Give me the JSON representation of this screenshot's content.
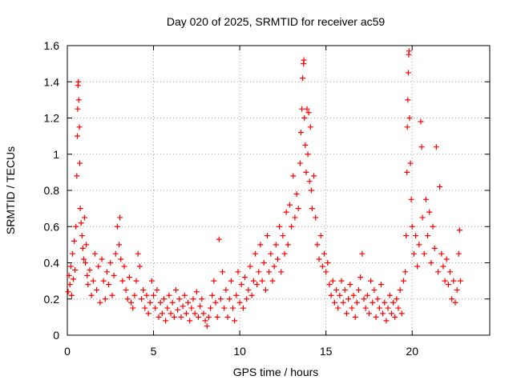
{
  "chart_data": {
    "type": "scatter",
    "title": "Day 020 of 2025, SRMTID for receiver ac59",
    "xlabel": "GPS time / hours",
    "ylabel": "SRMTID / TECUs",
    "xlim": [
      0,
      24.5
    ],
    "ylim": [
      0,
      1.6
    ],
    "xticks": [
      0,
      5,
      10,
      15,
      20
    ],
    "xtick_labels": [
      "0",
      "5",
      "10",
      "15",
      "20"
    ],
    "yticks": [
      0,
      0.2,
      0.4,
      0.6,
      0.8,
      1.0,
      1.2,
      1.4,
      1.6
    ],
    "ytick_labels": [
      "0",
      "0.2",
      "0.4",
      "0.6",
      "0.8",
      "1",
      "1.2",
      "1.4",
      "1.6"
    ],
    "grid": true,
    "marker": "+",
    "color": "#ff0000",
    "series": [
      {
        "name": "SRMTID",
        "points": [
          [
            0.05,
            0.24
          ],
          [
            0.1,
            0.33
          ],
          [
            0.15,
            0.28
          ],
          [
            0.2,
            0.38
          ],
          [
            0.25,
            0.22
          ],
          [
            0.3,
            0.45
          ],
          [
            0.35,
            0.31
          ],
          [
            0.4,
            0.52
          ],
          [
            0.45,
            0.36
          ],
          [
            0.5,
            0.6
          ],
          [
            0.55,
            0.88
          ],
          [
            0.58,
            1.1
          ],
          [
            0.6,
            1.25
          ],
          [
            0.62,
            1.38
          ],
          [
            0.64,
            1.4
          ],
          [
            0.66,
            1.3
          ],
          [
            0.7,
            1.15
          ],
          [
            0.72,
            0.95
          ],
          [
            0.75,
            0.7
          ],
          [
            0.8,
            0.62
          ],
          [
            0.85,
            0.55
          ],
          [
            0.9,
            0.48
          ],
          [
            0.95,
            0.42
          ],
          [
            1.0,
            0.65
          ],
          [
            1.05,
            0.4
          ],
          [
            1.1,
            0.5
          ],
          [
            1.15,
            0.33
          ],
          [
            1.2,
            0.28
          ],
          [
            1.3,
            0.36
          ],
          [
            1.4,
            0.22
          ],
          [
            1.5,
            0.3
          ],
          [
            1.6,
            0.45
          ],
          [
            1.7,
            0.25
          ],
          [
            1.8,
            0.38
          ],
          [
            1.9,
            0.18
          ],
          [
            2.0,
            0.42
          ],
          [
            2.1,
            0.3
          ],
          [
            2.2,
            0.2
          ],
          [
            2.3,
            0.35
          ],
          [
            2.4,
            0.28
          ],
          [
            2.5,
            0.4
          ],
          [
            2.6,
            0.22
          ],
          [
            2.7,
            0.33
          ],
          [
            2.8,
            0.45
          ],
          [
            2.9,
            0.6
          ],
          [
            3.0,
            0.5
          ],
          [
            3.05,
            0.65
          ],
          [
            3.1,
            0.42
          ],
          [
            3.2,
            0.3
          ],
          [
            3.3,
            0.38
          ],
          [
            3.4,
            0.25
          ],
          [
            3.5,
            0.2
          ],
          [
            3.6,
            0.32
          ],
          [
            3.7,
            0.18
          ],
          [
            3.8,
            0.15
          ],
          [
            3.9,
            0.22
          ],
          [
            4.0,
            0.3
          ],
          [
            4.1,
            0.45
          ],
          [
            4.2,
            0.38
          ],
          [
            4.3,
            0.2
          ],
          [
            4.4,
            0.25
          ],
          [
            4.5,
            0.15
          ],
          [
            4.6,
            0.22
          ],
          [
            4.7,
            0.12
          ],
          [
            4.8,
            0.18
          ],
          [
            4.9,
            0.3
          ],
          [
            5.0,
            0.22
          ],
          [
            5.1,
            0.15
          ],
          [
            5.2,
            0.25
          ],
          [
            5.3,
            0.1
          ],
          [
            5.4,
            0.18
          ],
          [
            5.5,
            0.12
          ],
          [
            5.6,
            0.2
          ],
          [
            5.7,
            0.08
          ],
          [
            5.8,
            0.15
          ],
          [
            5.9,
            0.22
          ],
          [
            6.0,
            0.12
          ],
          [
            6.1,
            0.18
          ],
          [
            6.2,
            0.1
          ],
          [
            6.3,
            0.25
          ],
          [
            6.4,
            0.14
          ],
          [
            6.5,
            0.2
          ],
          [
            6.6,
            0.1
          ],
          [
            6.7,
            0.16
          ],
          [
            6.8,
            0.22
          ],
          [
            6.9,
            0.12
          ],
          [
            7.0,
            0.18
          ],
          [
            7.1,
            0.08
          ],
          [
            7.2,
            0.15
          ],
          [
            7.3,
            0.2
          ],
          [
            7.4,
            0.12
          ],
          [
            7.5,
            0.24
          ],
          [
            7.6,
            0.1
          ],
          [
            7.7,
            0.16
          ],
          [
            7.8,
            0.2
          ],
          [
            7.9,
            0.12
          ],
          [
            8.0,
            0.08
          ],
          [
            8.1,
            0.05
          ],
          [
            8.2,
            0.1
          ],
          [
            8.3,
            0.15
          ],
          [
            8.4,
            0.22
          ],
          [
            8.5,
            0.3
          ],
          [
            8.6,
            0.18
          ],
          [
            8.7,
            0.1
          ],
          [
            8.8,
            0.53
          ],
          [
            8.9,
            0.2
          ],
          [
            9.0,
            0.35
          ],
          [
            9.1,
            0.15
          ],
          [
            9.2,
            0.25
          ],
          [
            9.3,
            0.1
          ],
          [
            9.4,
            0.2
          ],
          [
            9.5,
            0.3
          ],
          [
            9.6,
            0.15
          ],
          [
            9.7,
            0.08
          ],
          [
            9.8,
            0.22
          ],
          [
            9.9,
            0.35
          ],
          [
            10.0,
            0.18
          ],
          [
            10.1,
            0.28
          ],
          [
            10.2,
            0.15
          ],
          [
            10.3,
            0.32
          ],
          [
            10.4,
            0.2
          ],
          [
            10.5,
            0.25
          ],
          [
            10.6,
            0.38
          ],
          [
            10.7,
            0.22
          ],
          [
            10.8,
            0.3
          ],
          [
            10.9,
            0.45
          ],
          [
            11.0,
            0.28
          ],
          [
            11.1,
            0.35
          ],
          [
            11.2,
            0.5
          ],
          [
            11.3,
            0.3
          ],
          [
            11.4,
            0.4
          ],
          [
            11.5,
            0.25
          ],
          [
            11.6,
            0.55
          ],
          [
            11.7,
            0.35
          ],
          [
            11.8,
            0.45
          ],
          [
            11.9,
            0.3
          ],
          [
            12.0,
            0.38
          ],
          [
            12.1,
            0.5
          ],
          [
            12.2,
            0.42
          ],
          [
            12.3,
            0.6
          ],
          [
            12.4,
            0.35
          ],
          [
            12.5,
            0.55
          ],
          [
            12.6,
            0.45
          ],
          [
            12.7,
            0.68
          ],
          [
            12.8,
            0.5
          ],
          [
            12.9,
            0.72
          ],
          [
            13.0,
            0.6
          ],
          [
            13.1,
            0.88
          ],
          [
            13.2,
            0.65
          ],
          [
            13.3,
            0.78
          ],
          [
            13.4,
            0.7
          ],
          [
            13.5,
            0.95
          ],
          [
            13.55,
            1.12
          ],
          [
            13.6,
            1.25
          ],
          [
            13.65,
            1.42
          ],
          [
            13.7,
            1.5
          ],
          [
            13.72,
            1.52
          ],
          [
            13.75,
            1.2
          ],
          [
            13.8,
            1.05
          ],
          [
            13.85,
            0.9
          ],
          [
            13.9,
            1.25
          ],
          [
            13.95,
            1.0
          ],
          [
            14.0,
            1.23
          ],
          [
            14.05,
            0.85
          ],
          [
            14.1,
            1.15
          ],
          [
            14.15,
            0.8
          ],
          [
            14.2,
            0.7
          ],
          [
            14.3,
            0.88
          ],
          [
            14.4,
            0.65
          ],
          [
            14.5,
            0.5
          ],
          [
            14.6,
            0.42
          ],
          [
            14.7,
            0.55
          ],
          [
            14.8,
            0.38
          ],
          [
            14.9,
            0.45
          ],
          [
            15.0,
            0.35
          ],
          [
            15.1,
            0.4
          ],
          [
            15.2,
            0.28
          ],
          [
            15.3,
            0.22
          ],
          [
            15.4,
            0.3
          ],
          [
            15.5,
            0.18
          ],
          [
            15.6,
            0.25
          ],
          [
            15.7,
            0.15
          ],
          [
            15.8,
            0.22
          ],
          [
            15.9,
            0.3
          ],
          [
            16.0,
            0.18
          ],
          [
            16.1,
            0.25
          ],
          [
            16.2,
            0.12
          ],
          [
            16.3,
            0.2
          ],
          [
            16.4,
            0.28
          ],
          [
            16.5,
            0.15
          ],
          [
            16.6,
            0.22
          ],
          [
            16.7,
            0.1
          ],
          [
            16.8,
            0.18
          ],
          [
            16.9,
            0.25
          ],
          [
            17.0,
            0.32
          ],
          [
            17.1,
            0.45
          ],
          [
            17.2,
            0.2
          ],
          [
            17.3,
            0.15
          ],
          [
            17.4,
            0.22
          ],
          [
            17.5,
            0.12
          ],
          [
            17.6,
            0.3
          ],
          [
            17.7,
            0.18
          ],
          [
            17.8,
            0.25
          ],
          [
            17.9,
            0.1
          ],
          [
            18.0,
            0.2
          ],
          [
            18.1,
            0.15
          ],
          [
            18.2,
            0.28
          ],
          [
            18.3,
            0.12
          ],
          [
            18.4,
            0.18
          ],
          [
            18.5,
            0.08
          ],
          [
            18.6,
            0.15
          ],
          [
            18.7,
            0.22
          ],
          [
            18.8,
            0.12
          ],
          [
            18.9,
            0.18
          ],
          [
            19.0,
            0.1
          ],
          [
            19.1,
            0.2
          ],
          [
            19.2,
            0.15
          ],
          [
            19.3,
            0.25
          ],
          [
            19.4,
            0.12
          ],
          [
            19.5,
            0.3
          ],
          [
            19.6,
            0.35
          ],
          [
            19.65,
            0.55
          ],
          [
            19.7,
            0.9
          ],
          [
            19.72,
            1.15
          ],
          [
            19.75,
            1.3
          ],
          [
            19.78,
            1.45
          ],
          [
            19.8,
            1.55
          ],
          [
            19.82,
            1.57
          ],
          [
            19.85,
            1.2
          ],
          [
            19.9,
            0.95
          ],
          [
            19.95,
            0.75
          ],
          [
            20.0,
            0.6
          ],
          [
            20.1,
            0.45
          ],
          [
            20.2,
            0.55
          ],
          [
            20.3,
            0.38
          ],
          [
            20.4,
            0.5
          ],
          [
            20.5,
            1.18
          ],
          [
            20.55,
            1.04
          ],
          [
            20.6,
            0.65
          ],
          [
            20.7,
            0.45
          ],
          [
            20.8,
            0.75
          ],
          [
            20.9,
            0.55
          ],
          [
            21.0,
            0.68
          ],
          [
            21.1,
            0.4
          ],
          [
            21.2,
            0.6
          ],
          [
            21.3,
            0.48
          ],
          [
            21.4,
            1.04
          ],
          [
            21.5,
            0.35
          ],
          [
            21.6,
            0.82
          ],
          [
            21.7,
            0.45
          ],
          [
            21.8,
            0.38
          ],
          [
            21.9,
            0.3
          ],
          [
            22.0,
            0.42
          ],
          [
            22.1,
            0.28
          ],
          [
            22.2,
            0.35
          ],
          [
            22.3,
            0.2
          ],
          [
            22.4,
            0.3
          ],
          [
            22.5,
            0.18
          ],
          [
            22.6,
            0.25
          ],
          [
            22.7,
            0.45
          ],
          [
            22.75,
            0.58
          ],
          [
            22.8,
            0.3
          ]
        ]
      }
    ]
  }
}
